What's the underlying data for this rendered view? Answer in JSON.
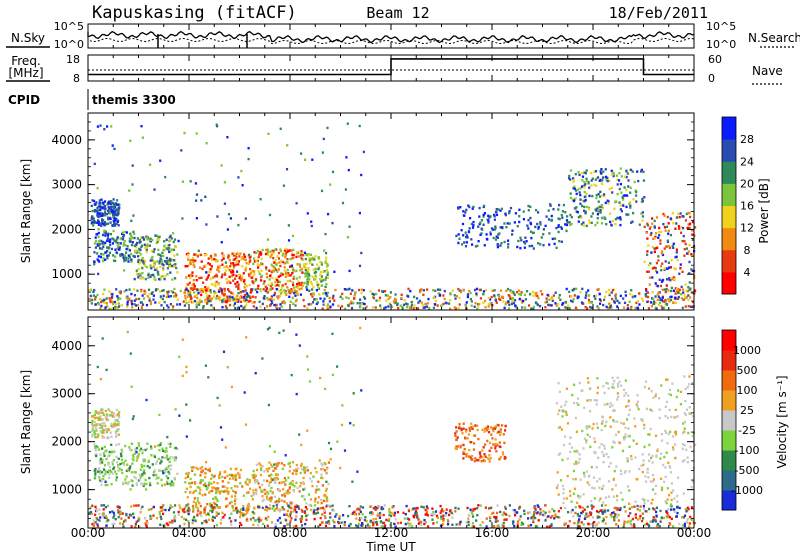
{
  "header": {
    "station": "Kapuskasing (fitACF)",
    "beam": "Beam 12",
    "date": "18/Feb/2011"
  },
  "noise_panel": {
    "left_label": "N.Sky",
    "left_ticks": [
      "10^5",
      "10^0"
    ],
    "right_label": "N.Search",
    "right_ticks": [
      "10^5",
      "10^0"
    ]
  },
  "freq_panel": {
    "left_label_line1": "Freq.",
    "left_label_line2": "[MHz]",
    "left_ticks": [
      "18",
      "8"
    ],
    "right_label": "Nave",
    "right_ticks": [
      "60",
      "0"
    ],
    "freq_step_series": [
      {
        "t": 0,
        "v": 0.25
      },
      {
        "t": 12,
        "v": 0.25
      },
      {
        "t": 12,
        "v": 0.85
      },
      {
        "t": 22,
        "v": 0.85
      },
      {
        "t": 22,
        "v": 0.25
      },
      {
        "t": 24,
        "v": 0.25
      }
    ]
  },
  "cpid": {
    "label": "CPID",
    "value": "themis 3300"
  },
  "chart_data": [
    {
      "type": "heatmap",
      "panel": "power",
      "ylabel": "Slant Range [km]",
      "yticks": [
        "1000",
        "2000",
        "3000",
        "4000"
      ],
      "ylim": [
        200,
        4600
      ],
      "xlim": [
        0,
        24
      ],
      "colorbar_label": "Power [dB]",
      "colorbar_ticks": [
        "4",
        "8",
        "12",
        "16",
        "20",
        "24",
        "28"
      ],
      "colorbar_colors": [
        "#0a1cff",
        "#2a4cb0",
        "#2e8a5a",
        "#7cc43a",
        "#f0d21e",
        "#f08a10",
        "#e83a10",
        "#ff0000"
      ]
    },
    {
      "type": "heatmap",
      "panel": "velocity",
      "ylabel": "Slant Range [km]",
      "yticks": [
        "1000",
        "2000",
        "3000",
        "4000"
      ],
      "ylim": [
        200,
        4600
      ],
      "xlim": [
        0,
        24
      ],
      "colorbar_label": "Velocity [m s⁻¹]",
      "colorbar_ticks": [
        "1000",
        "500",
        "100",
        "25",
        "-25",
        "-100",
        "-500",
        "-1000"
      ],
      "colorbar_colors": [
        "#1a2cd8",
        "#2e6a8a",
        "#2e8a4a",
        "#7cd43a",
        "#c8c8c8",
        "#f0a020",
        "#f06a10",
        "#e82a10",
        "#ff0000"
      ]
    }
  ],
  "xaxis": {
    "ticks": [
      "00:00",
      "04:00",
      "08:00",
      "12:00",
      "16:00",
      "20:00",
      "00:00"
    ],
    "label": "Time UT"
  }
}
